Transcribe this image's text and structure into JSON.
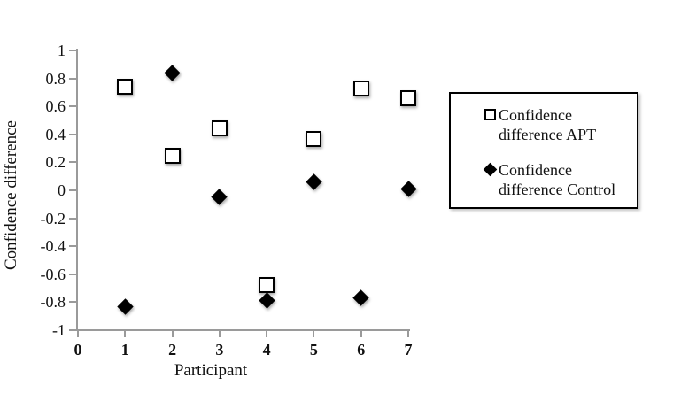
{
  "chart_data": {
    "type": "scatter",
    "title": "",
    "xlabel": "Participant",
    "ylabel": "Confidence difference",
    "xlim": [
      0,
      7
    ],
    "ylim": [
      -1,
      1
    ],
    "grid": false,
    "legend_position": "right",
    "x_ticks": [
      0,
      1,
      2,
      3,
      4,
      5,
      6,
      7
    ],
    "x_tick_labels": [
      "0",
      "1",
      "2",
      "3",
      "4",
      "5",
      "6",
      "7"
    ],
    "y_ticks": [
      1,
      0.8,
      0.6,
      0.4,
      0.2,
      0,
      -0.2,
      -0.4,
      -0.6,
      -0.8,
      -1
    ],
    "y_tick_labels": [
      "1",
      "0.8",
      "0.6",
      "0.4",
      "0.2",
      "0",
      "-0.2",
      "-0.4",
      "-0.6",
      "-0.8",
      "-1"
    ],
    "x": [
      1,
      2,
      3,
      4,
      5,
      6,
      7
    ],
    "series": [
      {
        "name": "Confidence difference APT",
        "marker": "open-square",
        "values": [
          0.74,
          0.25,
          0.44,
          -0.68,
          0.37,
          0.73,
          0.66
        ]
      },
      {
        "name": "Confidence difference Control",
        "marker": "filled-diamond",
        "values": [
          -0.83,
          0.84,
          -0.05,
          -0.79,
          0.06,
          -0.77,
          0.01
        ]
      }
    ]
  },
  "legend": {
    "entries": [
      {
        "label": "Confidence difference APT",
        "marker": "open-square"
      },
      {
        "label": "Confidence difference Control",
        "marker": "filled-diamond"
      }
    ]
  },
  "colors": {
    "marker": "#000000",
    "axis": "#9a9a9a",
    "text": "#111111",
    "background": "#ffffff"
  }
}
